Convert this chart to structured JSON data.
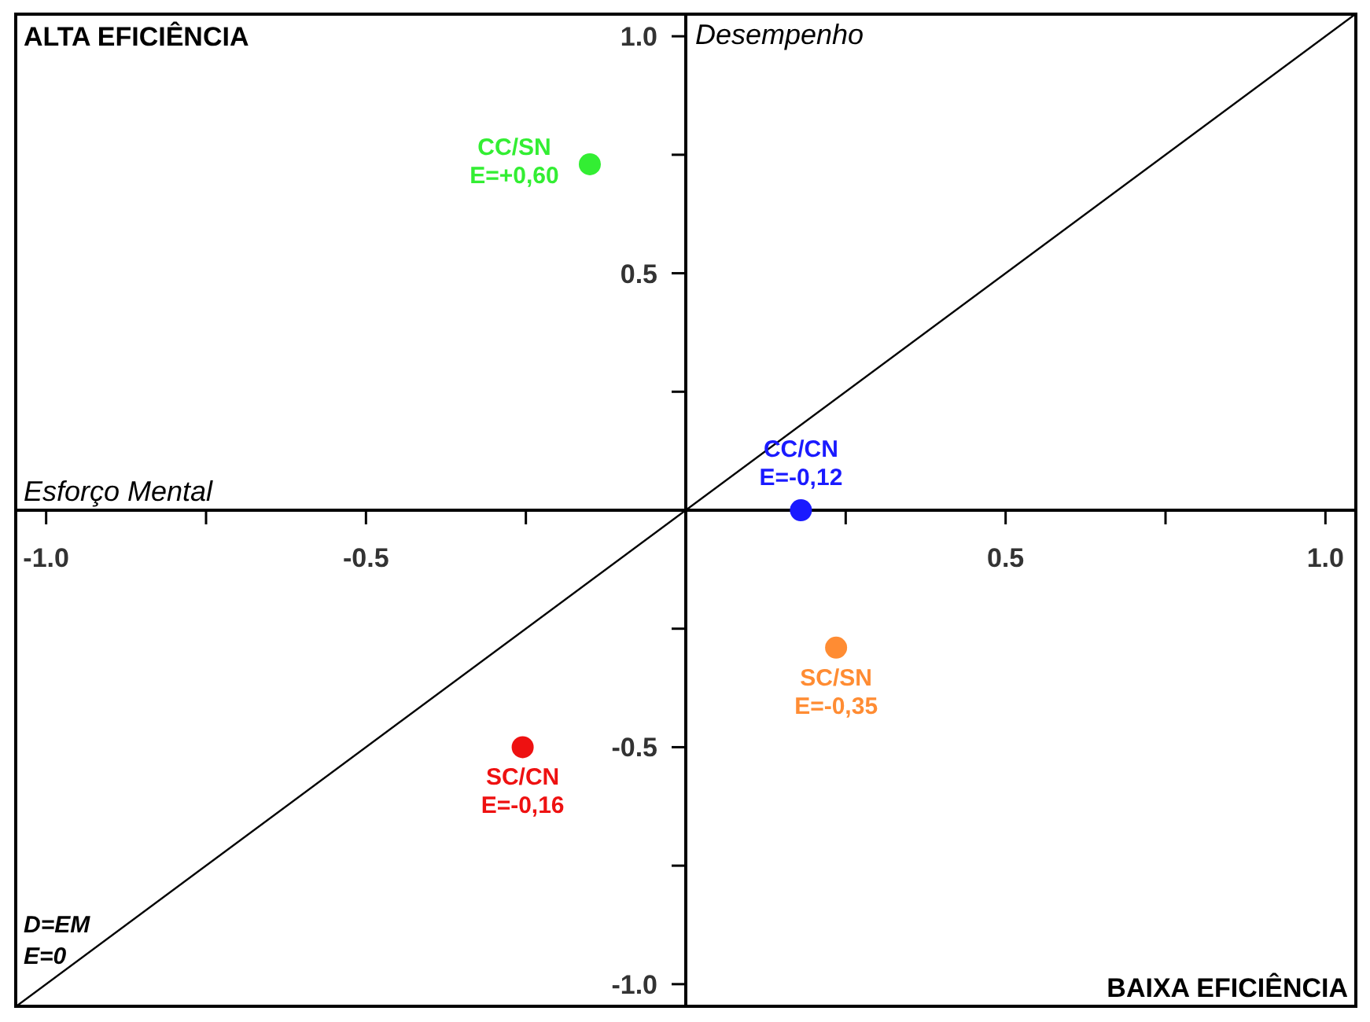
{
  "chart_data": {
    "type": "scatter",
    "xlim": [
      -1.05,
      1.05
    ],
    "ylim": [
      -1.05,
      1.05
    ],
    "xticks": [
      {
        "value": -1,
        "label": "-1.0"
      },
      {
        "value": -0.75,
        "label": null
      },
      -0.5,
      {
        "value": -0.25,
        "label": null
      },
      {
        "value": 0.25,
        "label": null
      },
      0.5,
      {
        "value": 0.75,
        "label": null
      },
      {
        "value": 1,
        "label": "1.0"
      }
    ],
    "yticks": [
      {
        "value": -1,
        "label": "-1.0"
      },
      {
        "value": -0.75,
        "label": null
      },
      -0.5,
      {
        "value": -0.25,
        "label": null
      },
      {
        "value": 0.25,
        "label": null
      },
      0.5,
      {
        "value": 0.75,
        "label": null
      },
      {
        "value": 1,
        "label": "1.0"
      }
    ],
    "grid": false,
    "legend": false,
    "marker": "circle",
    "xlabel": "Esforço Mental",
    "ylabel": "Desempenho",
    "series": [
      {
        "name": "CC/SN",
        "color": "#33ee33",
        "x": [
          -0.15
        ],
        "values": [
          0.73
        ]
      },
      {
        "name": "CC/CN",
        "color": "#1a1aff",
        "x": [
          0.18
        ],
        "values": [
          0
        ]
      },
      {
        "name": "SC/SN",
        "color": "#ff8c33",
        "x": [
          0.235
        ],
        "values": [
          -0.29
        ]
      },
      {
        "name": "SC/CN",
        "color": "#ee1111",
        "x": [
          -0.255
        ],
        "values": [
          -0.5
        ]
      },
      {
        "type": "line",
        "color": "#000000",
        "x": [
          -1.05,
          1.05
        ],
        "values": [
          -1.05,
          1.05
        ],
        "marker": "none",
        "line_style": "solid"
      }
    ],
    "annotations": [
      "ALTA EFICIÊNCIA",
      "BAIXA EFICIÊNCIA",
      "D=EM",
      "E=0",
      {
        "text": "E=+0,60",
        "x": -0.15,
        "y": 0.73
      },
      {
        "text": "E=-0,12",
        "x": 0.18,
        "y": 0
      },
      {
        "text": "E=-0,35",
        "x": 0.235,
        "y": -0.29
      },
      {
        "text": "E=-0,16",
        "x": -0.255,
        "y": -0.5
      }
    ]
  }
}
